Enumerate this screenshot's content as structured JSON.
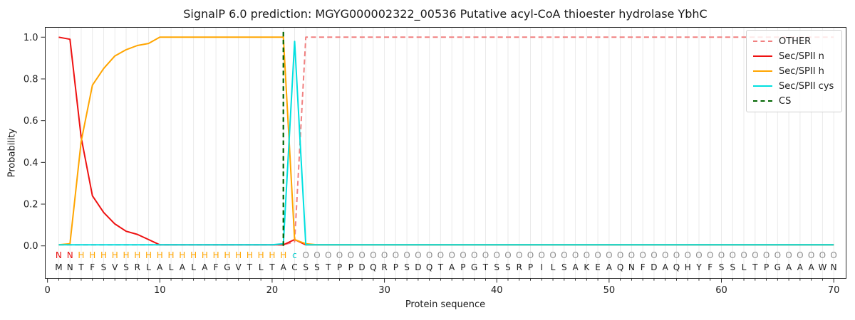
{
  "chart_data": {
    "type": "line",
    "title": "SignalP 6.0 prediction: MGYG000002322_00536 Putative acyl-CoA thioester hydrolase YbhC",
    "xlabel": "Protein sequence",
    "ylabel": "Probability",
    "x_ticks": [
      0,
      10,
      20,
      30,
      40,
      50,
      60,
      70
    ],
    "y_ticks": [
      "0.0",
      "0.2",
      "0.4",
      "0.6",
      "0.8",
      "1.0"
    ],
    "xlim": [
      -0.2,
      71.1
    ],
    "ylim": [
      -0.156,
      1.047
    ],
    "grid": "vertical line at every residue position",
    "legend_position": "upper right",
    "x_start": 1,
    "sequence": "MNTFSVSRLALALAFGVTLTACSSTPPDQRPSDQTAPGTSSRPILSAKEAQNFDAQHYFSSLTPGAAAWN",
    "annotation": "NNHHHHHHHHHHHHHHHHHHHcOOOOOOOOOOOOOOOOOOOOOOOOOOOOOOOOOOOOOOOOOOOOOOOO",
    "annotation_colors": {
      "N": "#e81010",
      "H": "#ffa500",
      "c": "#00cccc",
      "O": "#8c8c8c"
    },
    "sequence_color": "#1c1c1c",
    "series": [
      {
        "name": "OTHER",
        "color": "#f08080",
        "dash": true,
        "values": [
          0.005,
          0.005,
          0.005,
          0.005,
          0.005,
          0.005,
          0.005,
          0.005,
          0.005,
          0.005,
          0.005,
          0.005,
          0.005,
          0.005,
          0.005,
          0.005,
          0.005,
          0.005,
          0.005,
          0.005,
          0.005,
          0.02,
          1,
          1,
          1,
          1,
          1,
          1,
          1,
          1,
          1,
          1,
          1,
          1,
          1,
          1,
          1,
          1,
          1,
          1,
          1,
          1,
          1,
          1,
          1,
          1,
          1,
          1,
          1,
          1,
          1,
          1,
          1,
          1,
          1,
          1,
          1,
          1,
          1,
          1,
          1,
          1,
          1,
          1,
          1,
          1,
          1,
          1,
          1,
          1
        ]
      },
      {
        "name": "Sec/SPII n",
        "color": "#ee1111",
        "dash": false,
        "values": [
          1,
          0.99,
          0.52,
          0.24,
          0.16,
          0.105,
          0.07,
          0.055,
          0.03,
          0.005,
          0.005,
          0.005,
          0.005,
          0.005,
          0.005,
          0.005,
          0.005,
          0.005,
          0.005,
          0.005,
          0.005,
          0.03,
          0.005,
          0.005,
          0.005,
          0.005,
          0.005,
          0.005,
          0.005,
          0.005,
          0.005,
          0.005,
          0.005,
          0.005,
          0.005,
          0.005,
          0.005,
          0.005,
          0.005,
          0.005,
          0.005,
          0.005,
          0.005,
          0.005,
          0.005,
          0.005,
          0.005,
          0.005,
          0.005,
          0.005,
          0.005,
          0.005,
          0.005,
          0.005,
          0.005,
          0.005,
          0.005,
          0.005,
          0.005,
          0.005,
          0.005,
          0.005,
          0.005,
          0.005,
          0.005,
          0.005,
          0.005,
          0.005,
          0.005,
          0.005
        ]
      },
      {
        "name": "Sec/SPII h",
        "color": "#ffa500",
        "dash": false,
        "values": [
          0.005,
          0.01,
          0.5,
          0.77,
          0.85,
          0.91,
          0.94,
          0.96,
          0.97,
          1,
          1,
          1,
          1,
          1,
          1,
          1,
          1,
          1,
          1,
          1,
          1,
          0.03,
          0.01,
          0.005,
          0.005,
          0.005,
          0.005,
          0.005,
          0.005,
          0.005,
          0.005,
          0.005,
          0.005,
          0.005,
          0.005,
          0.005,
          0.005,
          0.005,
          0.005,
          0.005,
          0.005,
          0.005,
          0.005,
          0.005,
          0.005,
          0.005,
          0.005,
          0.005,
          0.005,
          0.005,
          0.005,
          0.005,
          0.005,
          0.005,
          0.005,
          0.005,
          0.005,
          0.005,
          0.005,
          0.005,
          0.005,
          0.005,
          0.005,
          0.005,
          0.005,
          0.005,
          0.005,
          0.005,
          0.005,
          0.005
        ]
      },
      {
        "name": "Sec/SPII cys",
        "color": "#00e0e0",
        "dash": false,
        "values": [
          0.005,
          0.005,
          0.005,
          0.005,
          0.005,
          0.005,
          0.005,
          0.005,
          0.005,
          0.005,
          0.005,
          0.005,
          0.005,
          0.005,
          0.005,
          0.005,
          0.005,
          0.005,
          0.005,
          0.005,
          0.01,
          0.98,
          0.005,
          0.005,
          0.005,
          0.005,
          0.005,
          0.005,
          0.005,
          0.005,
          0.005,
          0.005,
          0.005,
          0.005,
          0.005,
          0.005,
          0.005,
          0.005,
          0.005,
          0.005,
          0.005,
          0.005,
          0.005,
          0.005,
          0.005,
          0.005,
          0.005,
          0.005,
          0.005,
          0.005,
          0.005,
          0.005,
          0.005,
          0.005,
          0.005,
          0.005,
          0.005,
          0.005,
          0.005,
          0.005,
          0.005,
          0.005,
          0.005,
          0.005,
          0.005,
          0.005,
          0.005,
          0.005,
          0.005,
          0.005
        ]
      }
    ],
    "cs_line": {
      "name": "CS",
      "color": "#006400",
      "dash": true,
      "x": 21,
      "y_from": 0,
      "y_to": 1.04
    }
  }
}
